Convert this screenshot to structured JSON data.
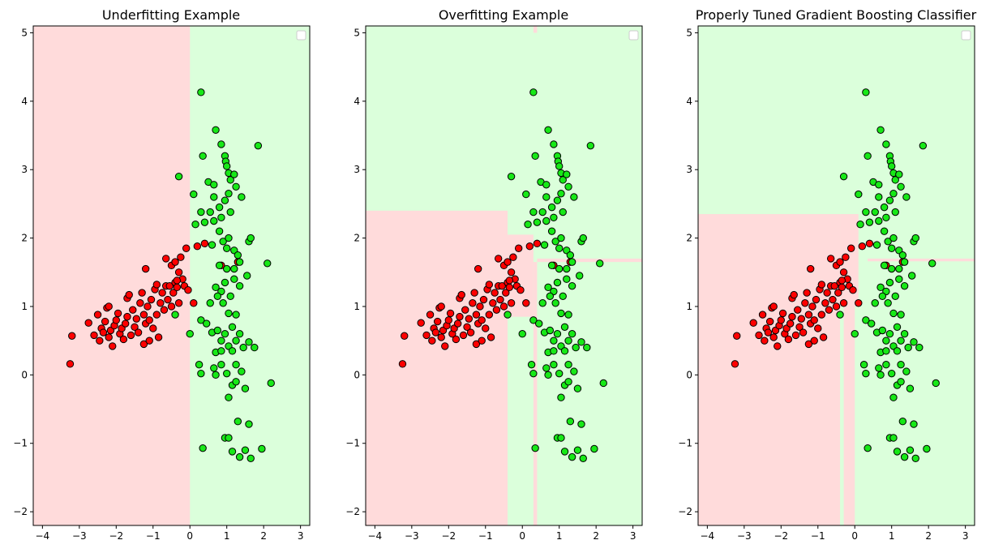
{
  "chart_data": [
    {
      "type": "scatter",
      "title": "Underfitting Example",
      "xlim": [
        -4.25,
        3.25
      ],
      "ylim": [
        -2.2,
        5.1
      ],
      "xticks": [
        -4,
        -3,
        -2,
        -1,
        0,
        1,
        2,
        3
      ],
      "yticks": [
        -2,
        -1,
        0,
        1,
        2,
        3,
        4,
        5
      ],
      "legend": "top-right (empty)",
      "regions": [
        {
          "class": "red",
          "x0": -4.25,
          "x1": 0.0,
          "y0": -2.2,
          "y1": 5.1
        }
      ]
    },
    {
      "type": "scatter",
      "title": "Overfitting Example",
      "xlim": [
        -4.25,
        3.25
      ],
      "ylim": [
        -2.2,
        5.1
      ],
      "xticks": [
        -4,
        -3,
        -2,
        -1,
        0,
        1,
        2,
        3
      ],
      "yticks": [
        -2,
        -1,
        0,
        1,
        2,
        3,
        4,
        5
      ],
      "legend": "top-right (empty)",
      "regions": [
        {
          "class": "red",
          "x0": -4.25,
          "x1": -0.4,
          "y0": -2.2,
          "y1": 2.4
        },
        {
          "class": "red",
          "x0": -0.4,
          "x1": 0.3,
          "y0": 0.85,
          "y1": 2.05
        },
        {
          "class": "red",
          "x0": 0.3,
          "x1": 0.4,
          "y0": 5.0,
          "y1": 5.1
        },
        {
          "class": "red",
          "x0": 0.3,
          "x1": 0.4,
          "y0": -2.2,
          "y1": 1.65
        },
        {
          "class": "red",
          "x0": 0.4,
          "x1": 3.25,
          "y0": 1.65,
          "y1": 1.7
        }
      ]
    },
    {
      "type": "scatter",
      "title": "Properly Tuned Gradient Boosting Classifier",
      "xlim": [
        -4.25,
        3.25
      ],
      "ylim": [
        -2.2,
        5.1
      ],
      "xticks": [
        -4,
        -3,
        -2,
        -1,
        0,
        1,
        2,
        3
      ],
      "yticks": [
        -2,
        -1,
        0,
        1,
        2,
        3,
        4,
        5
      ],
      "legend": "top-right (empty)",
      "regions": [
        {
          "class": "red",
          "x0": -4.25,
          "x1": -0.4,
          "y0": -2.2,
          "y1": 2.35
        },
        {
          "class": "red",
          "x0": -0.4,
          "x1": 0.1,
          "y0": 1.0,
          "y1": 2.35
        },
        {
          "class": "red",
          "x0": -0.3,
          "x1": 0.0,
          "y0": -2.2,
          "y1": 1.0
        },
        {
          "class": "red",
          "x0": 0.35,
          "x1": 3.25,
          "y0": 1.66,
          "y1": 1.7
        }
      ]
    }
  ],
  "points": {
    "red": [
      [
        -3.2,
        0.57
      ],
      [
        -3.25,
        0.16
      ],
      [
        -2.75,
        0.76
      ],
      [
        -2.6,
        0.58
      ],
      [
        -2.5,
        0.88
      ],
      [
        -2.45,
        0.5
      ],
      [
        -2.4,
        0.68
      ],
      [
        -2.35,
        0.62
      ],
      [
        -2.3,
        0.78
      ],
      [
        -2.25,
        0.98
      ],
      [
        -2.2,
        1.0
      ],
      [
        -2.2,
        0.55
      ],
      [
        -2.15,
        0.65
      ],
      [
        -2.1,
        0.42
      ],
      [
        -2.05,
        0.72
      ],
      [
        -2.0,
        0.8
      ],
      [
        -1.95,
        0.9
      ],
      [
        -1.9,
        0.6
      ],
      [
        -1.85,
        0.68
      ],
      [
        -1.8,
        0.52
      ],
      [
        -1.75,
        0.75
      ],
      [
        -1.7,
        1.12
      ],
      [
        -1.7,
        0.85
      ],
      [
        -1.65,
        1.17
      ],
      [
        -1.6,
        0.58
      ],
      [
        -1.55,
        0.95
      ],
      [
        -1.5,
        0.7
      ],
      [
        -1.45,
        0.82
      ],
      [
        -1.4,
        0.62
      ],
      [
        -1.35,
        1.05
      ],
      [
        -1.3,
        1.2
      ],
      [
        -1.25,
        0.88
      ],
      [
        -1.25,
        0.45
      ],
      [
        -1.2,
        0.75
      ],
      [
        -1.2,
        1.55
      ],
      [
        -1.15,
        1.0
      ],
      [
        -1.1,
        0.5
      ],
      [
        -1.1,
        0.8
      ],
      [
        -1.05,
        1.1
      ],
      [
        -1.0,
        0.68
      ],
      [
        -0.95,
        1.25
      ],
      [
        -0.9,
        0.88
      ],
      [
        -0.9,
        1.32
      ],
      [
        -0.85,
        0.55
      ],
      [
        -0.8,
        1.05
      ],
      [
        -0.75,
        1.2
      ],
      [
        -0.7,
        0.95
      ],
      [
        -0.65,
        1.3
      ],
      [
        -0.65,
        1.7
      ],
      [
        -0.6,
        1.1
      ],
      [
        -0.55,
        1.3
      ],
      [
        -0.5,
        1.6
      ],
      [
        -0.5,
        1.0
      ],
      [
        -0.45,
        1.2
      ],
      [
        -0.4,
        1.35
      ],
      [
        -0.4,
        1.65
      ],
      [
        -0.35,
        1.28
      ],
      [
        -0.3,
        1.5
      ],
      [
        -0.3,
        1.05
      ],
      [
        -0.25,
        1.72
      ],
      [
        -0.2,
        1.4
      ],
      [
        -0.15,
        1.3
      ],
      [
        -0.1,
        1.85
      ],
      [
        -0.05,
        1.24
      ],
      [
        0.1,
        1.05
      ],
      [
        0.2,
        1.88
      ],
      [
        0.4,
        1.92
      ],
      [
        0.85,
        1.6
      ],
      [
        1.3,
        1.65
      ],
      [
        -0.35,
        1.38
      ]
    ],
    "green": [
      [
        0.3,
        4.13
      ],
      [
        0.35,
        3.2
      ],
      [
        0.7,
        3.58
      ],
      [
        0.85,
        3.37
      ],
      [
        0.95,
        3.2
      ],
      [
        0.97,
        3.12
      ],
      [
        1.0,
        3.05
      ],
      [
        1.05,
        2.95
      ],
      [
        1.1,
        2.85
      ],
      [
        1.2,
        2.93
      ],
      [
        1.25,
        2.75
      ],
      [
        1.4,
        2.6
      ],
      [
        1.85,
        3.35
      ],
      [
        -0.3,
        2.9
      ],
      [
        0.1,
        2.64
      ],
      [
        0.5,
        2.82
      ],
      [
        0.65,
        2.78
      ],
      [
        0.65,
        2.6
      ],
      [
        0.8,
        2.45
      ],
      [
        0.85,
        2.3
      ],
      [
        0.95,
        2.55
      ],
      [
        1.05,
        2.65
      ],
      [
        1.1,
        2.38
      ],
      [
        0.15,
        2.2
      ],
      [
        0.3,
        2.38
      ],
      [
        0.4,
        2.23
      ],
      [
        0.55,
        2.38
      ],
      [
        0.65,
        2.25
      ],
      [
        0.8,
        2.1
      ],
      [
        0.9,
        1.95
      ],
      [
        1.0,
        1.85
      ],
      [
        1.05,
        2.0
      ],
      [
        1.2,
        1.82
      ],
      [
        1.3,
        1.75
      ],
      [
        1.6,
        1.95
      ],
      [
        1.65,
        2.0
      ],
      [
        2.1,
        1.63
      ],
      [
        0.6,
        1.9
      ],
      [
        0.8,
        1.6
      ],
      [
        1.0,
        1.55
      ],
      [
        1.2,
        1.4
      ],
      [
        1.35,
        1.65
      ],
      [
        1.55,
        1.45
      ],
      [
        0.7,
        1.28
      ],
      [
        0.85,
        1.22
      ],
      [
        0.95,
        1.35
      ],
      [
        1.1,
        1.15
      ],
      [
        1.2,
        1.55
      ],
      [
        1.35,
        1.3
      ],
      [
        0.55,
        1.05
      ],
      [
        0.75,
        1.15
      ],
      [
        0.9,
        1.05
      ],
      [
        1.05,
        0.9
      ],
      [
        1.15,
        0.7
      ],
      [
        1.25,
        0.88
      ],
      [
        1.35,
        0.6
      ],
      [
        1.45,
        0.4
      ],
      [
        1.6,
        0.48
      ],
      [
        1.75,
        0.4
      ],
      [
        -0.4,
        0.88
      ],
      [
        0.0,
        0.6
      ],
      [
        0.3,
        0.8
      ],
      [
        0.45,
        0.75
      ],
      [
        0.6,
        0.62
      ],
      [
        0.75,
        0.65
      ],
      [
        0.85,
        0.5
      ],
      [
        0.95,
        0.6
      ],
      [
        1.05,
        0.42
      ],
      [
        1.15,
        0.35
      ],
      [
        1.25,
        0.5
      ],
      [
        0.7,
        0.33
      ],
      [
        0.85,
        0.35
      ],
      [
        0.25,
        0.15
      ],
      [
        0.3,
        0.02
      ],
      [
        0.65,
        0.1
      ],
      [
        0.7,
        0.0
      ],
      [
        0.85,
        0.15
      ],
      [
        1.0,
        0.02
      ],
      [
        1.15,
        -0.15
      ],
      [
        1.25,
        -0.1
      ],
      [
        1.5,
        -0.2
      ],
      [
        1.05,
        -0.33
      ],
      [
        1.25,
        0.15
      ],
      [
        2.2,
        -0.12
      ],
      [
        1.3,
        -0.68
      ],
      [
        1.6,
        -0.72
      ],
      [
        0.35,
        -1.07
      ],
      [
        0.95,
        -0.92
      ],
      [
        1.05,
        -0.92
      ],
      [
        1.15,
        -1.12
      ],
      [
        1.35,
        -1.2
      ],
      [
        1.5,
        -1.1
      ],
      [
        1.65,
        -1.22
      ],
      [
        1.95,
        -1.08
      ],
      [
        1.4,
        0.05
      ]
    ]
  },
  "colors": {
    "red_region": "#ffdbdb",
    "green_region": "#dbffdb",
    "red_point": "#ff0000",
    "green_point": "#17e817",
    "edge": "#000000"
  }
}
